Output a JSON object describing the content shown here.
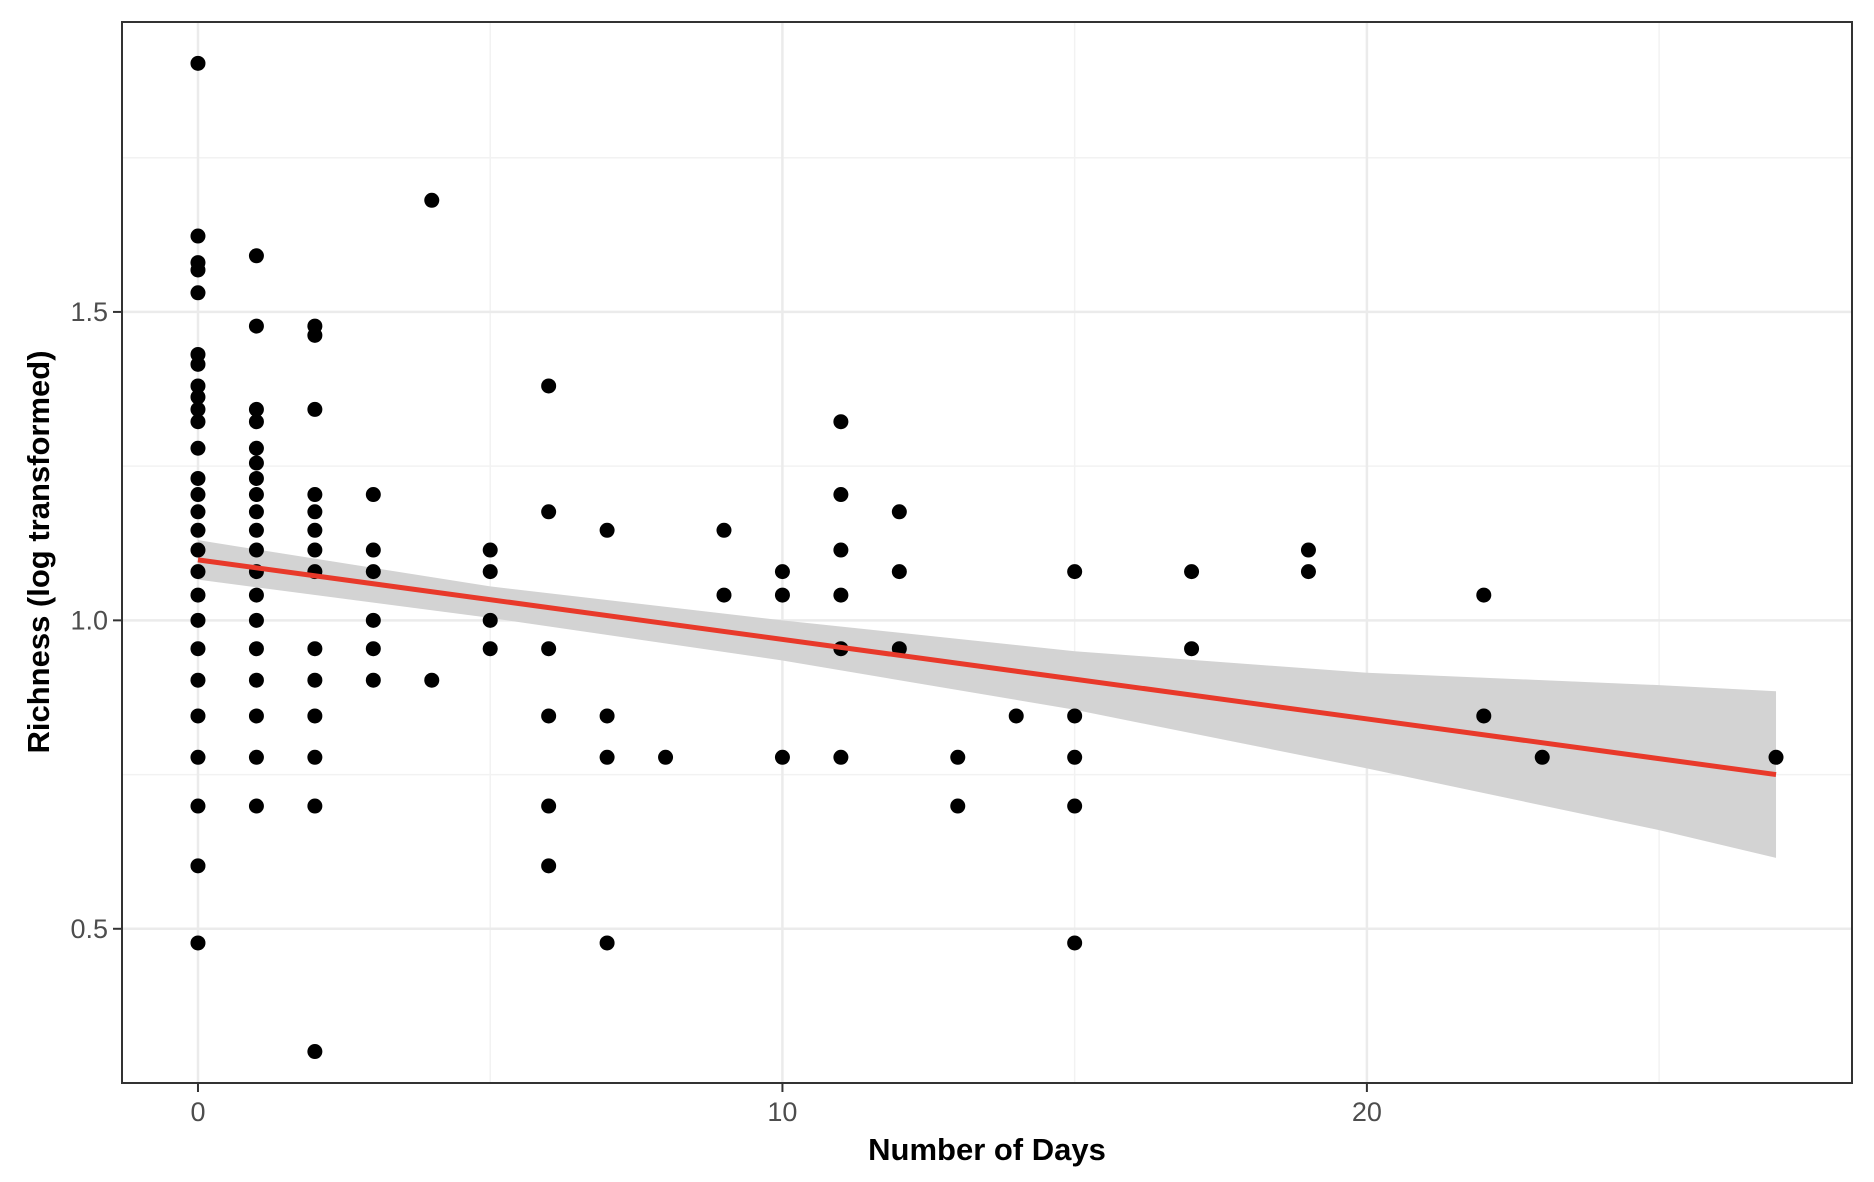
{
  "figure": {
    "caption": ""
  },
  "chart_data": {
    "type": "scatter",
    "xlabel": "Number of Days",
    "ylabel": "Richness (log transformed)",
    "xlim": [
      -1.3,
      28.3
    ],
    "ylim": [
      0.25,
      1.97
    ],
    "x_ticks": [
      0,
      10,
      20
    ],
    "x_tick_labels": [
      "0",
      "10",
      "20"
    ],
    "y_ticks": [
      0.5,
      1.0,
      1.5
    ],
    "y_tick_labels": [
      "0.5",
      "1.0",
      "1.5"
    ],
    "grid": true,
    "legend": "none",
    "colors": {
      "points": "#000000",
      "fit_line": "#e8392a",
      "confidence_band": "#d3d3d3",
      "grid": "#ebebeb",
      "panel_border": "#333333"
    },
    "points": [
      [
        0,
        1.903
      ],
      [
        0,
        1.623
      ],
      [
        0,
        1.58
      ],
      [
        0,
        1.568
      ],
      [
        0,
        1.531
      ],
      [
        0,
        1.431
      ],
      [
        0,
        1.415
      ],
      [
        0,
        1.38
      ],
      [
        0,
        1.362
      ],
      [
        0,
        1.342
      ],
      [
        0,
        1.322
      ],
      [
        0,
        1.279
      ],
      [
        0,
        1.23
      ],
      [
        0,
        1.204
      ],
      [
        0,
        1.176
      ],
      [
        0,
        1.146
      ],
      [
        0,
        1.114
      ],
      [
        0,
        1.079
      ],
      [
        0,
        1.041
      ],
      [
        0,
        1.0
      ],
      [
        0,
        0.954
      ],
      [
        0,
        0.903
      ],
      [
        0,
        0.845
      ],
      [
        0,
        0.778
      ],
      [
        0,
        0.699
      ],
      [
        0,
        0.602
      ],
      [
        0,
        0.477
      ],
      [
        1,
        1.591
      ],
      [
        1,
        1.477
      ],
      [
        1,
        1.342
      ],
      [
        1,
        1.322
      ],
      [
        1,
        1.279
      ],
      [
        1,
        1.255
      ],
      [
        1,
        1.23
      ],
      [
        1,
        1.204
      ],
      [
        1,
        1.176
      ],
      [
        1,
        1.146
      ],
      [
        1,
        1.114
      ],
      [
        1,
        1.079
      ],
      [
        1,
        1.041
      ],
      [
        1,
        1.0
      ],
      [
        1,
        0.954
      ],
      [
        1,
        0.903
      ],
      [
        1,
        0.845
      ],
      [
        1,
        0.778
      ],
      [
        1,
        0.699
      ],
      [
        2,
        1.477
      ],
      [
        2,
        1.462
      ],
      [
        2,
        1.342
      ],
      [
        2,
        1.204
      ],
      [
        2,
        1.176
      ],
      [
        2,
        1.146
      ],
      [
        2,
        1.114
      ],
      [
        2,
        1.079
      ],
      [
        2,
        0.954
      ],
      [
        2,
        0.903
      ],
      [
        2,
        0.845
      ],
      [
        2,
        0.778
      ],
      [
        2,
        0.699
      ],
      [
        2,
        0.301
      ],
      [
        3,
        1.204
      ],
      [
        3,
        1.114
      ],
      [
        3,
        1.079
      ],
      [
        3,
        1.0
      ],
      [
        3,
        0.954
      ],
      [
        3,
        0.903
      ],
      [
        4,
        1.681
      ],
      [
        4,
        0.903
      ],
      [
        5,
        1.114
      ],
      [
        5,
        1.079
      ],
      [
        5,
        1.0
      ],
      [
        5,
        0.954
      ],
      [
        6,
        1.38
      ],
      [
        6,
        1.176
      ],
      [
        6,
        0.954
      ],
      [
        6,
        0.845
      ],
      [
        6,
        0.699
      ],
      [
        6,
        0.602
      ],
      [
        7,
        1.146
      ],
      [
        7,
        0.845
      ],
      [
        7,
        0.778
      ],
      [
        7,
        0.477
      ],
      [
        8,
        0.778
      ],
      [
        9,
        1.146
      ],
      [
        9,
        1.041
      ],
      [
        10,
        1.079
      ],
      [
        10,
        1.041
      ],
      [
        10,
        0.778
      ],
      [
        11,
        1.322
      ],
      [
        11,
        1.204
      ],
      [
        11,
        1.114
      ],
      [
        11,
        1.041
      ],
      [
        11,
        0.954
      ],
      [
        11,
        0.778
      ],
      [
        12,
        1.176
      ],
      [
        12,
        1.079
      ],
      [
        12,
        0.954
      ],
      [
        13,
        0.778
      ],
      [
        13,
        0.699
      ],
      [
        14,
        0.845
      ],
      [
        15,
        1.079
      ],
      [
        15,
        0.845
      ],
      [
        15,
        0.778
      ],
      [
        15,
        0.699
      ],
      [
        15,
        0.477
      ],
      [
        17,
        1.079
      ],
      [
        17,
        0.954
      ],
      [
        19,
        1.114
      ],
      [
        19,
        1.079
      ],
      [
        22,
        1.041
      ],
      [
        22,
        0.845
      ],
      [
        23,
        0.778
      ],
      [
        27,
        0.778
      ]
    ],
    "fit": {
      "x": [
        0,
        27
      ],
      "y": [
        1.098,
        0.75
      ]
    },
    "confidence_band": {
      "x": [
        0,
        5,
        10,
        15,
        20,
        25,
        27
      ],
      "upper": [
        1.13,
        1.055,
        1.0,
        0.95,
        0.915,
        0.895,
        0.885
      ],
      "lower": [
        1.066,
        1.004,
        0.935,
        0.855,
        0.76,
        0.66,
        0.615
      ]
    }
  }
}
